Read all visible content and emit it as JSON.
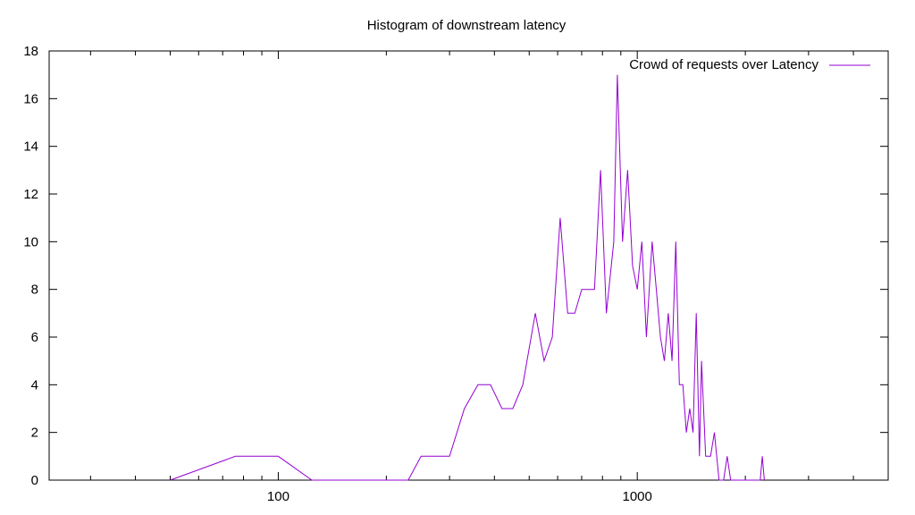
{
  "chart_data": {
    "type": "line",
    "title": "Histogram of downstream latency",
    "xlabel": "",
    "ylabel": "",
    "x_scale": "log",
    "xlim": [
      23,
      5000
    ],
    "ylim": [
      0,
      18
    ],
    "x_ticks": [
      100,
      1000
    ],
    "x_tick_labels": [
      "100",
      "1000"
    ],
    "y_ticks": [
      0,
      2,
      4,
      6,
      8,
      10,
      12,
      14,
      16,
      18
    ],
    "y_tick_labels": [
      "0",
      "2",
      "4",
      "6",
      "8",
      "10",
      "12",
      "14",
      "16",
      "18"
    ],
    "grid": false,
    "legend_position": "top-right",
    "series": [
      {
        "name": "Crowd of requests over Latency",
        "color": "#9400d3",
        "points": [
          [
            50,
            0
          ],
          [
            76,
            1
          ],
          [
            100,
            1
          ],
          [
            124,
            0
          ],
          [
            230,
            0
          ],
          [
            250,
            1
          ],
          [
            300,
            1
          ],
          [
            330,
            3
          ],
          [
            360,
            4
          ],
          [
            390,
            4
          ],
          [
            420,
            3
          ],
          [
            450,
            3
          ],
          [
            480,
            4
          ],
          [
            520,
            7
          ],
          [
            550,
            5
          ],
          [
            580,
            6
          ],
          [
            610,
            11
          ],
          [
            640,
            7
          ],
          [
            670,
            7
          ],
          [
            700,
            8
          ],
          [
            760,
            8
          ],
          [
            790,
            13
          ],
          [
            820,
            7
          ],
          [
            860,
            10
          ],
          [
            880,
            17
          ],
          [
            910,
            10
          ],
          [
            940,
            13
          ],
          [
            970,
            9
          ],
          [
            1000,
            8
          ],
          [
            1030,
            10
          ],
          [
            1060,
            6
          ],
          [
            1100,
            10
          ],
          [
            1130,
            8
          ],
          [
            1160,
            6
          ],
          [
            1190,
            5
          ],
          [
            1220,
            7
          ],
          [
            1250,
            5
          ],
          [
            1280,
            10
          ],
          [
            1310,
            4
          ],
          [
            1340,
            4
          ],
          [
            1370,
            2
          ],
          [
            1400,
            3
          ],
          [
            1430,
            2
          ],
          [
            1460,
            7
          ],
          [
            1490,
            1
          ],
          [
            1510,
            5
          ],
          [
            1550,
            1
          ],
          [
            1600,
            1
          ],
          [
            1640,
            2
          ],
          [
            1690,
            0
          ],
          [
            1740,
            0
          ],
          [
            1780,
            1
          ],
          [
            1820,
            0
          ],
          [
            2200,
            0
          ],
          [
            2230,
            1
          ],
          [
            2260,
            0
          ]
        ]
      }
    ]
  }
}
